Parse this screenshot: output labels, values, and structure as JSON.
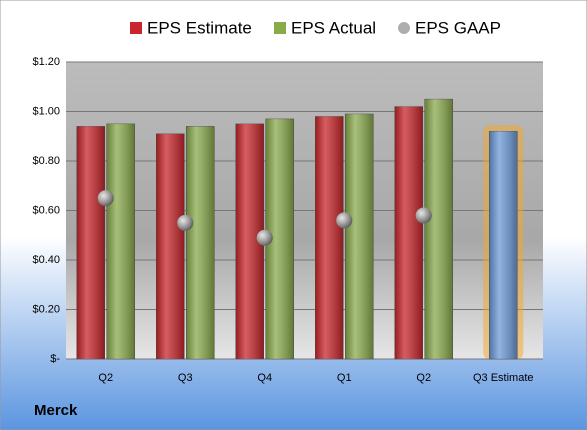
{
  "chart_data": {
    "type": "bar",
    "title": "Merck",
    "categories": [
      "Q2",
      "Q3",
      "Q4",
      "Q1",
      "Q2",
      "Q3 Estimate"
    ],
    "series": [
      {
        "name": "EPS Estimate",
        "color": "#c8262b",
        "values": [
          0.94,
          0.91,
          0.95,
          0.98,
          1.02,
          0.92
        ],
        "colors": [
          "#c8262b",
          "#c8262b",
          "#c8262b",
          "#c8262b",
          "#c8262b",
          "#6d9ad8"
        ]
      },
      {
        "name": "EPS Actual",
        "color": "#8aab4c",
        "values": [
          0.95,
          0.94,
          0.97,
          0.99,
          1.05,
          null
        ]
      },
      {
        "name": "EPS GAAP",
        "color": "#8c8c8c",
        "marker": "circle",
        "values": [
          0.65,
          0.55,
          0.49,
          0.56,
          0.58,
          null
        ]
      }
    ],
    "ylim": [
      0,
      1.2
    ],
    "yticks": [
      {
        "value": 0,
        "label": "$-"
      },
      {
        "value": 0.2,
        "label": "$0.20"
      },
      {
        "value": 0.4,
        "label": "$0.40"
      },
      {
        "value": 0.6,
        "label": "$0.60"
      },
      {
        "value": 0.8,
        "label": "$0.80"
      },
      {
        "value": 1.0,
        "label": "$1.00"
      },
      {
        "value": 1.2,
        "label": "$1.20"
      }
    ],
    "grid": true
  }
}
